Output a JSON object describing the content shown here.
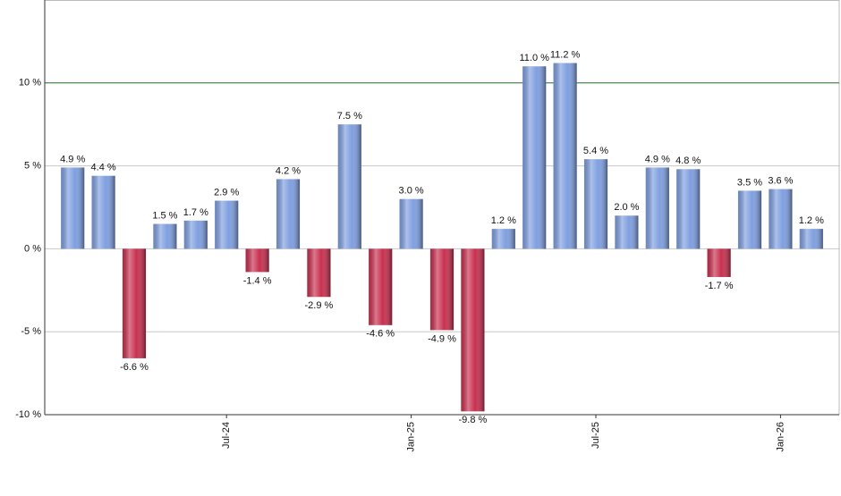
{
  "chart_data": {
    "type": "bar",
    "categories": [
      null,
      null,
      null,
      null,
      null,
      "Jul-24",
      null,
      null,
      null,
      null,
      null,
      "Jan-25",
      null,
      null,
      null,
      null,
      null,
      "Jul-25",
      null,
      null,
      null,
      null,
      null,
      "Jan-26",
      null
    ],
    "values": [
      4.9,
      4.4,
      -6.6,
      1.5,
      1.7,
      2.9,
      -1.4,
      4.2,
      -2.9,
      7.5,
      -4.6,
      3.0,
      -4.9,
      -9.8,
      1.2,
      11.0,
      11.2,
      5.4,
      2.0,
      4.9,
      4.8,
      -1.7,
      3.5,
      3.6,
      1.2
    ],
    "value_labels": [
      "4.9 %",
      "4.4 %",
      "-6.6 %",
      "1.5 %",
      "1.7 %",
      "2.9 %",
      "-1.4 %",
      "4.2 %",
      "-2.9 %",
      "7.5 %",
      "-4.6 %",
      "3.0 %",
      "-4.9 %",
      "-9.8 %",
      "1.2 %",
      "11.0 %",
      "11.2 %",
      "5.4 %",
      "2.0 %",
      "4.9 %",
      "4.8 %",
      "-1.7 %",
      "3.5 %",
      "3.6 %",
      "1.2 %"
    ],
    "positive_color": "#7f9fe0",
    "negative_color": "#c8304f",
    "ylim": [
      -10,
      15
    ],
    "yticks": [
      {
        "value": -10,
        "label": "-10 %"
      },
      {
        "value": -5,
        "label": "-5 %"
      },
      {
        "value": 0,
        "label": "0 %"
      },
      {
        "value": 5,
        "label": "5 %"
      },
      {
        "value": 10,
        "label": "10 %"
      }
    ],
    "grid": true,
    "reference_line": {
      "value": 10,
      "color": "#2e7d32"
    }
  }
}
